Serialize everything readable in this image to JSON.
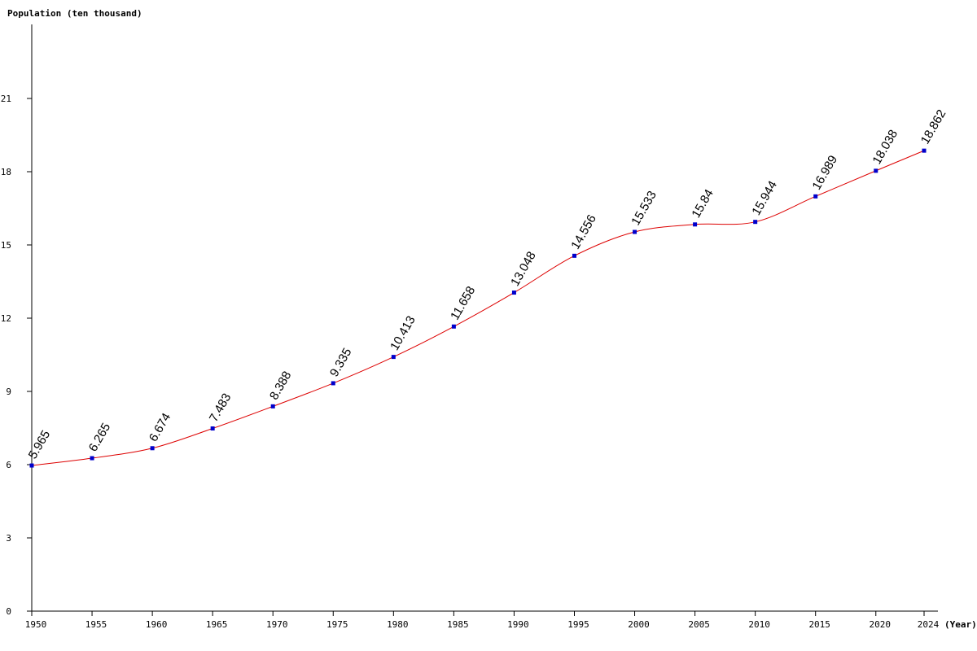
{
  "chart_data": {
    "type": "line",
    "ylabel": "Population (ten thousand)",
    "xlabel": "(Year)",
    "x": [
      1950,
      1955,
      1960,
      1965,
      1970,
      1975,
      1980,
      1985,
      1990,
      1995,
      2000,
      2005,
      2010,
      2015,
      2020,
      2024
    ],
    "series": [
      {
        "values": [
          5.965,
          6.265,
          6.674,
          7.483,
          8.388,
          9.335,
          10.413,
          11.658,
          13.048,
          14.556,
          15.533,
          15.84,
          15.944,
          16.989,
          18.038,
          18.862
        ]
      }
    ],
    "data_labels": [
      "5.965",
      "6.265",
      "6.674",
      "7.483",
      "8.388",
      "9.335",
      "10.413",
      "11.658",
      "13.048",
      "14.556",
      "15.533",
      "15.84",
      "15.944",
      "16.989",
      "18.038",
      "18.862"
    ],
    "y_ticks": [
      0,
      3,
      6,
      9,
      12,
      15,
      18,
      21
    ],
    "ylim": [
      0,
      24
    ],
    "xlim": [
      1950,
      2024
    ],
    "grid": false,
    "legend": "none",
    "colors": {
      "line": "#dd0000",
      "marker": "#0000cc",
      "axis": "#000000",
      "text": "#000000"
    }
  }
}
